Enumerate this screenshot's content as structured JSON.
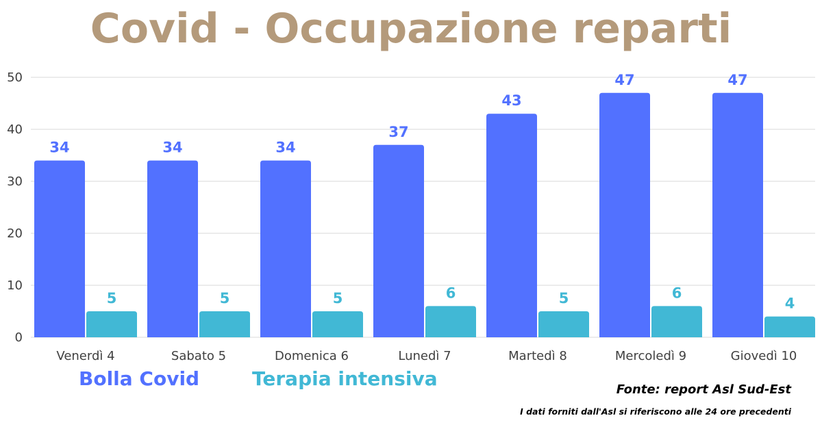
{
  "chart_data": {
    "type": "bar",
    "title": "Covid - Occupazione reparti",
    "categories": [
      "Venerdì 4",
      "Sabato 5",
      "Domenica 6",
      "Lunedì 7",
      "Martedì 8",
      "Mercoledì 9",
      "Giovedì 10"
    ],
    "series": [
      {
        "name": "Bolla Covid",
        "values": [
          34,
          34,
          34,
          37,
          43,
          47,
          47
        ],
        "color": "#5271ff"
      },
      {
        "name": "Terapia intensiva",
        "values": [
          5,
          5,
          5,
          6,
          5,
          6,
          4
        ],
        "color": "#41b8d5"
      }
    ],
    "ylim": [
      0,
      50
    ],
    "yticks": [
      0,
      10,
      20,
      30,
      40,
      50
    ],
    "xlabel": "",
    "ylabel": "",
    "grid": true,
    "legend_position": "bottom-left",
    "data_labels": true
  },
  "colors": {
    "title": "#b49a7b",
    "gridline": "#d9d9d9"
  },
  "footer": {
    "source": "Fonte: report Asl Sud-Est",
    "note": "I dati forniti dall'Asl si riferiscono alle 24 ore precedenti"
  }
}
